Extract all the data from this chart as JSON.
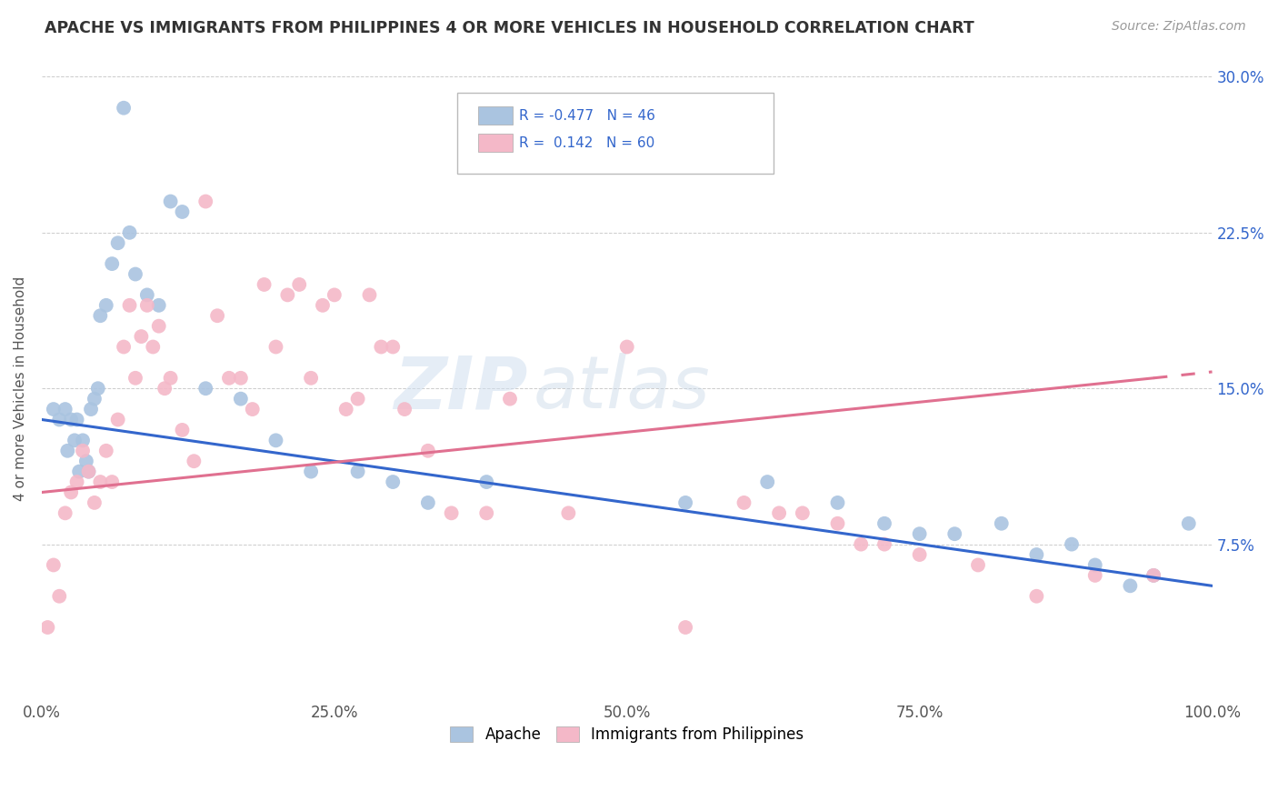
{
  "title": "APACHE VS IMMIGRANTS FROM PHILIPPINES 4 OR MORE VEHICLES IN HOUSEHOLD CORRELATION CHART",
  "source": "Source: ZipAtlas.com",
  "ylabel": "4 or more Vehicles in Household",
  "xlim": [
    0,
    100
  ],
  "ylim": [
    0,
    30
  ],
  "yticks": [
    0,
    7.5,
    15.0,
    22.5,
    30.0
  ],
  "xticks": [
    0,
    25,
    50,
    75,
    100
  ],
  "R_apache": -0.477,
  "N_apache": 46,
  "R_philippines": 0.142,
  "N_philippines": 60,
  "apache_color": "#aac4e0",
  "philippines_color": "#f4b8c8",
  "apache_line_color": "#3366cc",
  "philippines_line_color": "#e07090",
  "watermark_zip": "ZIP",
  "watermark_atlas": "atlas",
  "apache_x": [
    1.0,
    1.5,
    2.0,
    2.2,
    2.5,
    2.8,
    3.0,
    3.2,
    3.5,
    3.8,
    4.0,
    4.2,
    4.5,
    4.8,
    5.0,
    5.5,
    6.0,
    6.5,
    7.0,
    7.5,
    8.0,
    9.0,
    10.0,
    11.0,
    12.0,
    14.0,
    17.0,
    20.0,
    23.0,
    27.0,
    30.0,
    33.0,
    38.0,
    55.0,
    62.0,
    68.0,
    72.0,
    75.0,
    78.0,
    82.0,
    85.0,
    88.0,
    90.0,
    93.0,
    95.0,
    98.0
  ],
  "apache_y": [
    14.0,
    13.5,
    14.0,
    12.0,
    13.5,
    12.5,
    13.5,
    11.0,
    12.5,
    11.5,
    11.0,
    14.0,
    14.5,
    15.0,
    18.5,
    19.0,
    21.0,
    22.0,
    28.5,
    22.5,
    20.5,
    19.5,
    19.0,
    24.0,
    23.5,
    15.0,
    14.5,
    12.5,
    11.0,
    11.0,
    10.5,
    9.5,
    10.5,
    9.5,
    10.5,
    9.5,
    8.5,
    8.0,
    8.0,
    8.5,
    7.0,
    7.5,
    6.5,
    5.5,
    6.0,
    8.5
  ],
  "philippines_x": [
    0.5,
    1.0,
    1.5,
    2.0,
    2.5,
    3.0,
    3.5,
    4.0,
    4.5,
    5.0,
    5.5,
    6.0,
    6.5,
    7.0,
    7.5,
    8.0,
    8.5,
    9.0,
    9.5,
    10.0,
    10.5,
    11.0,
    12.0,
    13.0,
    14.0,
    15.0,
    16.0,
    17.0,
    18.0,
    19.0,
    20.0,
    21.0,
    22.0,
    23.0,
    24.0,
    25.0,
    26.0,
    27.0,
    28.0,
    29.0,
    30.0,
    31.0,
    33.0,
    35.0,
    38.0,
    40.0,
    45.0,
    50.0,
    55.0,
    60.0,
    63.0,
    65.0,
    68.0,
    70.0,
    72.0,
    75.0,
    80.0,
    85.0,
    90.0,
    95.0
  ],
  "philippines_y": [
    3.5,
    6.5,
    5.0,
    9.0,
    10.0,
    10.5,
    12.0,
    11.0,
    9.5,
    10.5,
    12.0,
    10.5,
    13.5,
    17.0,
    19.0,
    15.5,
    17.5,
    19.0,
    17.0,
    18.0,
    15.0,
    15.5,
    13.0,
    11.5,
    24.0,
    18.5,
    15.5,
    15.5,
    14.0,
    20.0,
    17.0,
    19.5,
    20.0,
    15.5,
    19.0,
    19.5,
    14.0,
    14.5,
    19.5,
    17.0,
    17.0,
    14.0,
    12.0,
    9.0,
    9.0,
    14.5,
    9.0,
    17.0,
    3.5,
    9.5,
    9.0,
    9.0,
    8.5,
    7.5,
    7.5,
    7.0,
    6.5,
    5.0,
    6.0,
    6.0
  ],
  "apache_trendline_x": [
    0,
    100
  ],
  "apache_trendline_y": [
    13.5,
    5.5
  ],
  "philippines_trendline_x0": 0,
  "philippines_trendline_y0": 10.0,
  "philippines_trendline_x1": 95,
  "philippines_trendline_y1": 15.5,
  "philippines_dash_x0": 95,
  "philippines_dash_y0": 15.5,
  "philippines_dash_x1": 100,
  "philippines_dash_y1": 15.8
}
